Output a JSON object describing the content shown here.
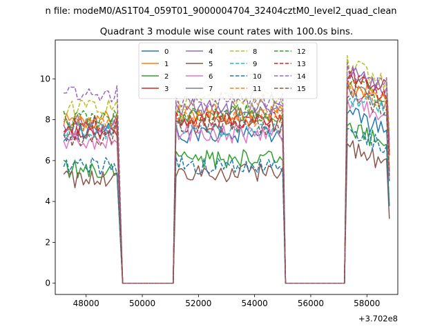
{
  "chart_data": {
    "type": "line",
    "suptitle": "n file: modeM0/AS1T04_059T01_9000004704_32404cztM0_level2_quad_clean",
    "title": "Quadrant 3 module wise count rates with 100.0s bins.",
    "xlabel": "",
    "ylabel": "",
    "x_offset_label": "+3.702e8",
    "xlim": [
      46900,
      59100
    ],
    "ylim": [
      -0.55,
      11.9
    ],
    "x_ticks": [
      48000,
      50000,
      52000,
      54000,
      56000,
      58000
    ],
    "x_tick_labels": [
      "48000",
      "50000",
      "52000",
      "54000",
      "56000",
      "58000"
    ],
    "y_ticks": [
      0,
      2,
      4,
      6,
      8,
      10
    ],
    "y_tick_labels": [
      "0",
      "2",
      "4",
      "6",
      "8",
      "10"
    ],
    "grid": false,
    "legend_position": "top-center",
    "legend_columns": 4,
    "segments": [
      {
        "start": 47200,
        "end": 49100,
        "step": 100
      },
      {
        "start": 51200,
        "end": 55000,
        "step": 100
      },
      {
        "start": 57300,
        "end": 58800,
        "step": 100
      }
    ],
    "gaps": [
      {
        "from": 49100,
        "zero_start": 49300,
        "zero_end": 51100,
        "to": 51200
      },
      {
        "from": 55000,
        "zero_start": 55100,
        "zero_end": 57200,
        "to": 57300
      }
    ],
    "series": [
      {
        "name": "0",
        "color": "#1f77b4",
        "dash": "solid",
        "levels": [
          7.4,
          7.3,
          7.6
        ]
      },
      {
        "name": "1",
        "color": "#ff7f0e",
        "dash": "solid",
        "levels": [
          8.0,
          8.3,
          9.1
        ]
      },
      {
        "name": "2",
        "color": "#2ca02c",
        "dash": "solid",
        "levels": [
          5.6,
          6.1,
          6.9
        ]
      },
      {
        "name": "3",
        "color": "#d62728",
        "dash": "solid",
        "levels": [
          7.2,
          7.9,
          9.6
        ]
      },
      {
        "name": "4",
        "color": "#9467bd",
        "dash": "solid",
        "levels": [
          7.6,
          8.6,
          9.6
        ]
      },
      {
        "name": "5",
        "color": "#8c564b",
        "dash": "solid",
        "levels": [
          5.1,
          5.4,
          6.0
        ]
      },
      {
        "name": "6",
        "color": "#e377c2",
        "dash": "solid",
        "levels": [
          7.0,
          7.3,
          8.2
        ]
      },
      {
        "name": "7",
        "color": "#7f7f7f",
        "dash": "solid",
        "levels": [
          7.9,
          8.2,
          8.8
        ]
      },
      {
        "name": "8",
        "color": "#bcbd22",
        "dash": "dashed",
        "levels": [
          8.6,
          8.9,
          10.0
        ]
      },
      {
        "name": "9",
        "color": "#17becf",
        "dash": "dashed",
        "levels": [
          7.5,
          7.6,
          8.5
        ]
      },
      {
        "name": "10",
        "color": "#1f77b4",
        "dash": "dashed",
        "levels": [
          5.7,
          5.8,
          6.8
        ]
      },
      {
        "name": "11",
        "color": "#ff7f0e",
        "dash": "dashed",
        "levels": [
          7.9,
          8.1,
          9.0
        ]
      },
      {
        "name": "12",
        "color": "#2ca02c",
        "dash": "dashed",
        "levels": [
          8.0,
          8.3,
          9.1
        ]
      },
      {
        "name": "13",
        "color": "#d62728",
        "dash": "dashed",
        "levels": [
          7.7,
          8.0,
          9.3
        ]
      },
      {
        "name": "14",
        "color": "#9467bd",
        "dash": "dashed",
        "levels": [
          9.3,
          9.0,
          9.8
        ]
      },
      {
        "name": "15",
        "color": "#8c564b",
        "dash": "dashed",
        "levels": [
          7.1,
          7.7,
          8.6
        ]
      }
    ]
  }
}
